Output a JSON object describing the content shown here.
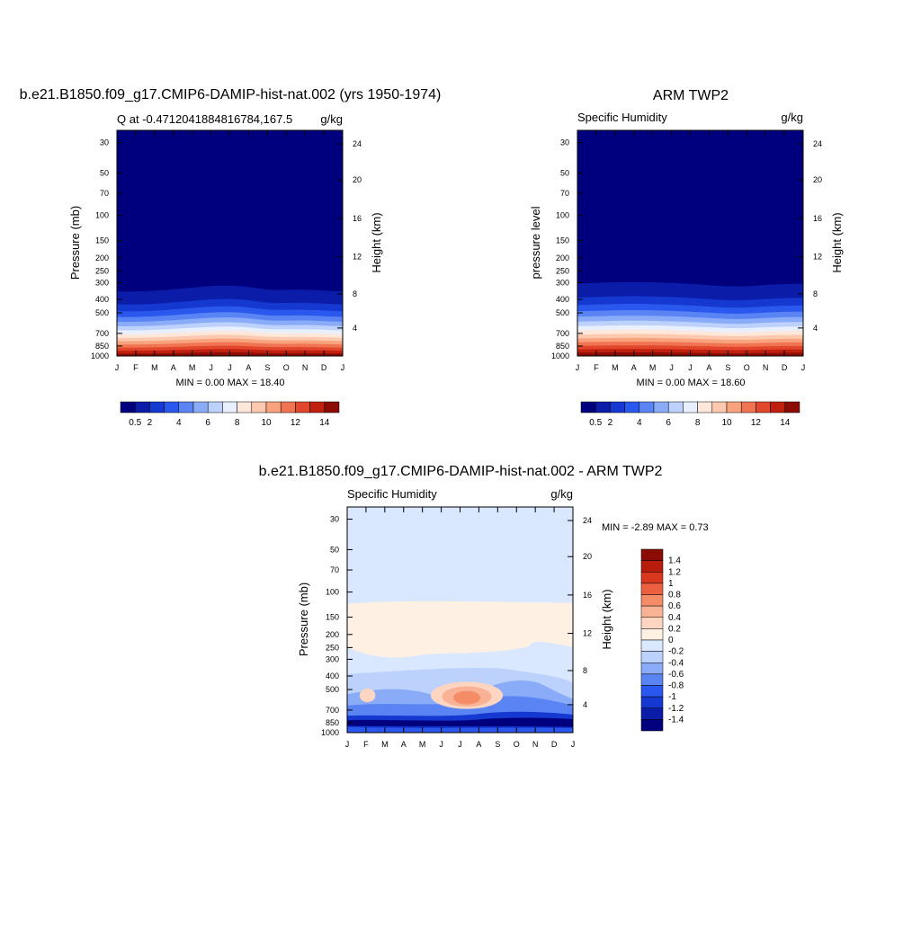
{
  "colors": {
    "model_palette": [
      "#00007f",
      "#0a1ca8",
      "#1438d0",
      "#2a58ee",
      "#5a84f4",
      "#8aacf8",
      "#bcd2fc",
      "#e8f0ff",
      "#ffe8da",
      "#fcc8ae",
      "#f8a27e",
      "#f07452",
      "#e2462c",
      "#c0200f",
      "#8a0c05"
    ],
    "diff_palette": [
      "#00007f",
      "#0a1ca8",
      "#1438d0",
      "#2a58ee",
      "#5a84f4",
      "#8aacf8",
      "#bcd2fc",
      "#d9e8fe",
      "#fff0e4",
      "#fdd5c0",
      "#f9b296",
      "#f48c68",
      "#ec6040",
      "#d8381e",
      "#b81c0c",
      "#8a0c05"
    ]
  },
  "panels": {
    "model": {
      "title": "b.e21.B1850.f09_g17.CMIP6-DAMIP-hist-nat.002 (yrs 1950-1974)",
      "left_string": "Q at -0.4712041884816784,167.5",
      "right_string": "g/kg",
      "ylabel": "Pressure (mb)",
      "ylabel_right": "Height (km)",
      "min_max": "MIN =   0.00 MAX =  18.40",
      "colorbar_labels": [
        "0.5",
        "2",
        "4",
        "6",
        "8",
        "10",
        "12",
        "14"
      ]
    },
    "obs": {
      "title": "ARM TWP2",
      "left_string": "Specific Humidity",
      "right_string": "g/kg",
      "ylabel": "pressure level",
      "ylabel_right": "Height (km)",
      "min_max": "MIN =   0.00 MAX =  18.60",
      "colorbar_labels": [
        "0.5",
        "2",
        "4",
        "6",
        "8",
        "10",
        "12",
        "14"
      ]
    },
    "diff": {
      "title": "b.e21.B1850.f09_g17.CMIP6-DAMIP-hist-nat.002 - ARM TWP2",
      "left_string": "Specific Humidity",
      "right_string": "g/kg",
      "ylabel": "Pressure (mb)",
      "ylabel_right": "Height (km)",
      "min_max": "MIN =  -2.89 MAX =   0.73",
      "colorbar_labels": [
        "1.4",
        "1.2",
        "1",
        "0.8",
        "0.6",
        "0.4",
        "0.2",
        "0",
        "-0.2",
        "-0.4",
        "-0.6",
        "-0.8",
        "-1",
        "-1.2",
        "-1.4"
      ]
    }
  },
  "chart_data": [
    {
      "type": "heatmap",
      "name": "model",
      "x_tick_labels": [
        "J",
        "F",
        "M",
        "A",
        "M",
        "J",
        "J",
        "A",
        "S",
        "O",
        "N",
        "D",
        "J"
      ],
      "y_tick_labels": [
        "30",
        "50",
        "70",
        "100",
        "150",
        "200",
        "250",
        "300",
        "400",
        "500",
        "700",
        "850",
        "1000"
      ],
      "y_tick_values": [
        30,
        50,
        70,
        100,
        150,
        200,
        250,
        300,
        400,
        500,
        700,
        850,
        1000
      ],
      "y2_tick_labels": [
        "24",
        "20",
        "16",
        "12",
        "8",
        "4"
      ],
      "y2_tick_values": [
        24,
        20,
        16,
        12,
        8,
        4
      ],
      "ylim": [
        30,
        1000
      ],
      "y_scale": "log",
      "contour_levels": [
        0.5,
        1,
        2,
        3,
        4,
        5,
        6,
        7,
        8,
        9,
        10,
        11,
        12,
        13,
        14
      ],
      "value_range": [
        0.0,
        18.4
      ]
    },
    {
      "type": "heatmap",
      "name": "obs",
      "x_tick_labels": [
        "J",
        "F",
        "M",
        "A",
        "M",
        "J",
        "J",
        "A",
        "S",
        "O",
        "N",
        "D",
        "J"
      ],
      "y_tick_labels": [
        "30",
        "50",
        "70",
        "100",
        "150",
        "200",
        "250",
        "300",
        "400",
        "500",
        "700",
        "850",
        "1000"
      ],
      "y_tick_values": [
        30,
        50,
        70,
        100,
        150,
        200,
        250,
        300,
        400,
        500,
        700,
        850,
        1000
      ],
      "y2_tick_labels": [
        "24",
        "20",
        "16",
        "12",
        "8",
        "4"
      ],
      "y2_tick_values": [
        24,
        20,
        16,
        12,
        8,
        4
      ],
      "ylim": [
        30,
        1000
      ],
      "y_scale": "log",
      "contour_levels": [
        0.5,
        1,
        2,
        3,
        4,
        5,
        6,
        7,
        8,
        9,
        10,
        11,
        12,
        13,
        14
      ],
      "value_range": [
        0.0,
        18.6
      ]
    },
    {
      "type": "heatmap",
      "name": "diff",
      "x_tick_labels": [
        "J",
        "F",
        "M",
        "A",
        "M",
        "J",
        "J",
        "A",
        "S",
        "O",
        "N",
        "D",
        "J"
      ],
      "y_tick_labels": [
        "30",
        "50",
        "70",
        "100",
        "150",
        "200",
        "250",
        "300",
        "400",
        "500",
        "700",
        "850",
        "1000"
      ],
      "y_tick_values": [
        30,
        50,
        70,
        100,
        150,
        200,
        250,
        300,
        400,
        500,
        700,
        850,
        1000
      ],
      "y2_tick_labels": [
        "24",
        "20",
        "16",
        "12",
        "8",
        "4"
      ],
      "y2_tick_values": [
        24,
        20,
        16,
        12,
        8,
        4
      ],
      "ylim": [
        30,
        1000
      ],
      "y_scale": "log",
      "contour_levels": [
        -1.4,
        -1.2,
        -1,
        -0.8,
        -0.6,
        -0.4,
        -0.2,
        0,
        0.2,
        0.4,
        0.6,
        0.8,
        1,
        1.2,
        1.4
      ],
      "value_range": [
        -2.89,
        0.73
      ],
      "legend": "right"
    }
  ]
}
